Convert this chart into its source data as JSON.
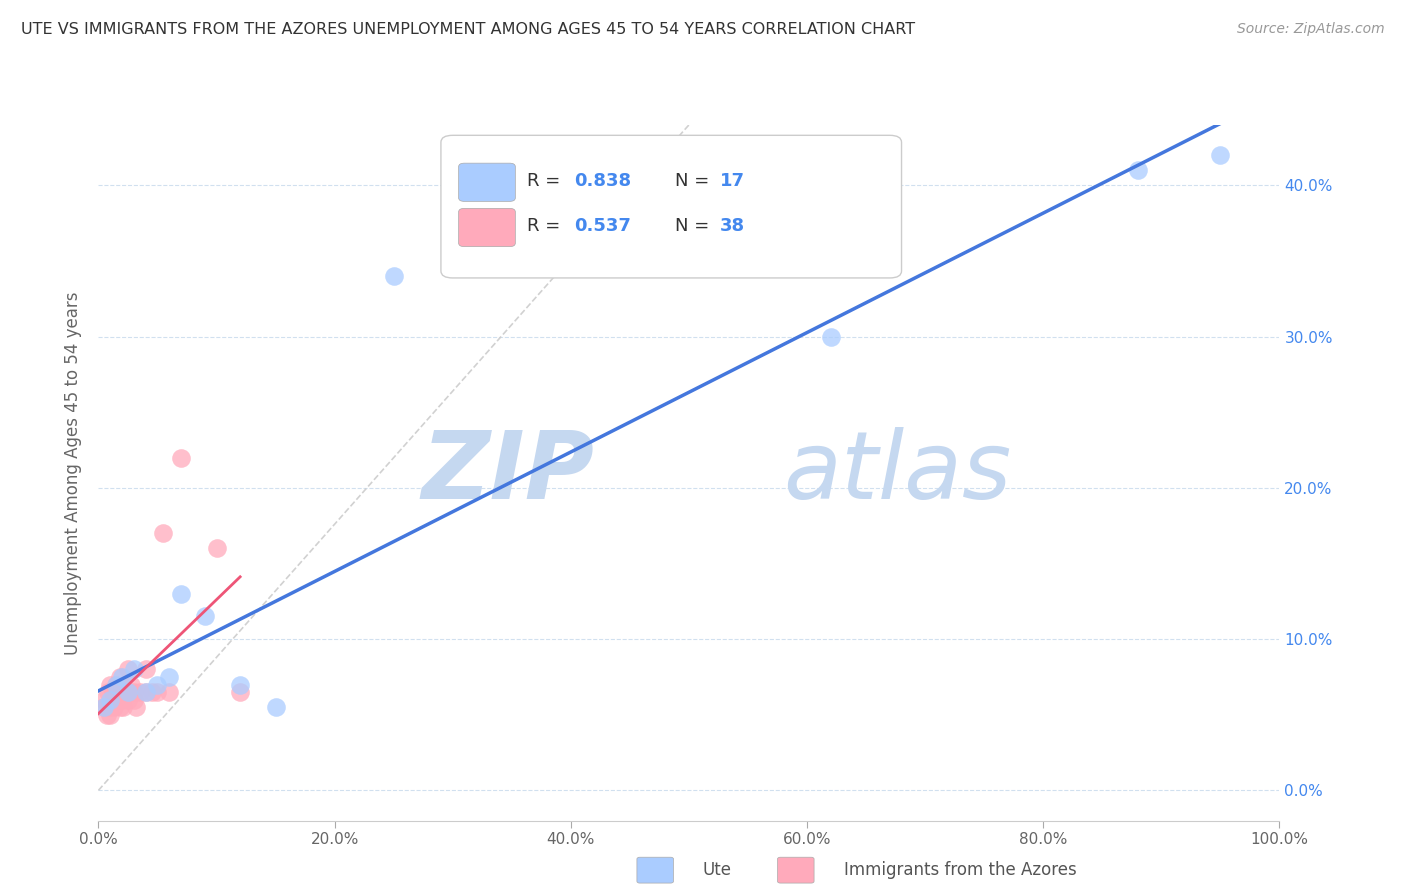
{
  "title": "UTE VS IMMIGRANTS FROM THE AZORES UNEMPLOYMENT AMONG AGES 45 TO 54 YEARS CORRELATION CHART",
  "source": "Source: ZipAtlas.com",
  "ylabel": "Unemployment Among Ages 45 to 54 years",
  "xlabel_ticks": [
    "0.0%",
    "20.0%",
    "40.0%",
    "60.0%",
    "80.0%",
    "100.0%"
  ],
  "ytick_labels": [
    "0.0%",
    "10.0%",
    "20.0%",
    "30.0%",
    "40.0%"
  ],
  "xlim": [
    0,
    1.0
  ],
  "ylim": [
    -0.02,
    0.44
  ],
  "ute_color": "#aaccff",
  "azores_color": "#ffaabb",
  "ute_line_color": "#4477dd",
  "azores_line_color": "#ee5577",
  "watermark_zip_color": "#c5d8f0",
  "watermark_atlas_color": "#c5d8f0",
  "R_ute": 0.838,
  "N_ute": 17,
  "R_azores": 0.537,
  "N_azores": 38,
  "legend_label_ute": "Ute",
  "legend_label_azores": "Immigrants from the Azores",
  "ute_scatter_x": [
    0.005,
    0.01,
    0.015,
    0.02,
    0.025,
    0.03,
    0.04,
    0.05,
    0.06,
    0.07,
    0.09,
    0.12,
    0.15,
    0.62,
    0.88,
    0.95,
    0.25
  ],
  "ute_scatter_y": [
    0.055,
    0.06,
    0.07,
    0.075,
    0.065,
    0.08,
    0.065,
    0.07,
    0.075,
    0.13,
    0.115,
    0.07,
    0.055,
    0.3,
    0.41,
    0.42,
    0.34
  ],
  "azores_scatter_x": [
    0.005,
    0.005,
    0.007,
    0.008,
    0.009,
    0.01,
    0.01,
    0.012,
    0.012,
    0.013,
    0.015,
    0.015,
    0.016,
    0.017,
    0.018,
    0.018,
    0.019,
    0.02,
    0.02,
    0.021,
    0.022,
    0.025,
    0.025,
    0.026,
    0.028,
    0.03,
    0.03,
    0.032,
    0.035,
    0.04,
    0.04,
    0.045,
    0.05,
    0.055,
    0.06,
    0.07,
    0.1,
    0.12
  ],
  "azores_scatter_y": [
    0.055,
    0.06,
    0.05,
    0.065,
    0.055,
    0.05,
    0.07,
    0.06,
    0.065,
    0.055,
    0.065,
    0.07,
    0.06,
    0.065,
    0.055,
    0.075,
    0.065,
    0.06,
    0.065,
    0.055,
    0.065,
    0.06,
    0.08,
    0.065,
    0.07,
    0.06,
    0.065,
    0.055,
    0.065,
    0.065,
    0.08,
    0.065,
    0.065,
    0.17,
    0.065,
    0.22,
    0.16,
    0.065
  ]
}
